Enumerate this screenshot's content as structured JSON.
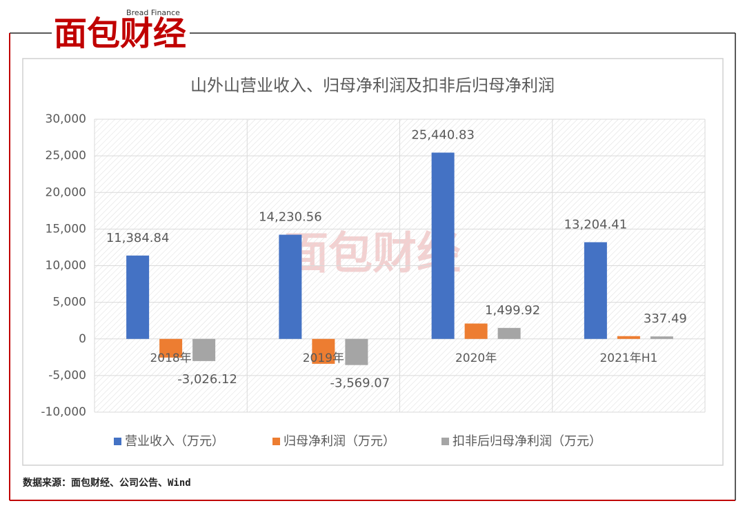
{
  "header": {
    "logo": "面包财经",
    "logo_en": "Bread Finance"
  },
  "source": "数据来源：面包财经、公司公告、Wind",
  "chart_data": {
    "type": "bar",
    "title": "山外山营业收入、归母净利润及扣非后归母净利润",
    "categories": [
      "2018年",
      "2019年",
      "2020年",
      "2021年H1"
    ],
    "series": [
      {
        "name": "营业收入（万元）",
        "color": "#4472c4",
        "values": [
          11384.84,
          14230.56,
          25440.83,
          13204.41
        ],
        "value_labels": [
          "11,384.84",
          "14,230.56",
          "25,440.83",
          "13,204.41"
        ]
      },
      {
        "name": "归母净利润（万元）",
        "color": "#ed7d31",
        "values": [
          -2550,
          -3400,
          2100,
          380
        ]
      },
      {
        "name": "扣非后归母净利润（万元）",
        "color": "#a5a5a5",
        "values": [
          -3026.12,
          -3569.07,
          1499.92,
          337.49
        ],
        "value_labels": [
          "-3,026.12",
          "-3,569.07",
          "1,499.92",
          "337.49"
        ]
      }
    ],
    "ylim": [
      -10000,
      30000
    ],
    "yticks": [
      {
        "value": -10000,
        "label": "-10,000"
      },
      {
        "value": -5000,
        "label": "-5,000"
      },
      0,
      {
        "value": 5000,
        "label": "5,000"
      },
      {
        "value": 10000,
        "label": "10,000"
      },
      {
        "value": 15000,
        "label": "15,000"
      },
      {
        "value": 20000,
        "label": "20,000"
      },
      {
        "value": 25000,
        "label": "25,000"
      },
      {
        "value": 30000,
        "label": "30,000"
      }
    ],
    "grid": true,
    "legend": "bottom"
  }
}
